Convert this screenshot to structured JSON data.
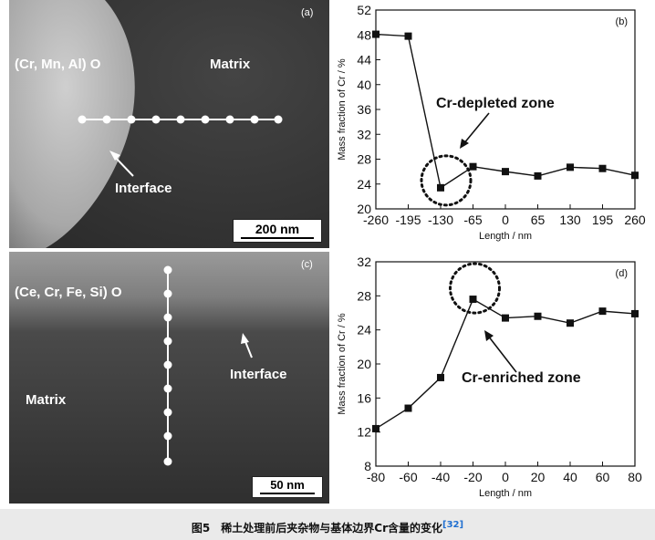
{
  "panel_a": {
    "label": "(a)",
    "phase_label": "(Cr, Mn, Al) O",
    "matrix_label": "Matrix",
    "interface_label": "Interface",
    "scale_bar": "200 nm"
  },
  "panel_c": {
    "label": "(c)",
    "phase_label": "(Ce, Cr, Fe, Si) O",
    "matrix_label": "Matrix",
    "interface_label": "Interface",
    "scale_bar": "50 nm"
  },
  "caption": {
    "text": "图5　稀土处理前后夹杂物与基体边界Cr含量的变化",
    "citation": "[32]"
  },
  "chart_data": [
    {
      "type": "line",
      "panel_label": "(b)",
      "x": [
        -260,
        -195,
        -130,
        -65,
        0,
        65,
        130,
        195,
        260
      ],
      "y": [
        48.1,
        47.8,
        23.4,
        26.8,
        26.0,
        25.3,
        26.7,
        26.5,
        25.4
      ],
      "xlabel": "Length / nm",
      "ylabel": "Mass fraction of Cr / %",
      "xlim": [
        -260,
        260
      ],
      "ylim": [
        20,
        52
      ],
      "xticks": [
        -260,
        -195,
        -130,
        -65,
        0,
        65,
        130,
        195,
        260
      ],
      "yticks": [
        20,
        24,
        28,
        32,
        36,
        40,
        44,
        48,
        52
      ],
      "annotation": "Cr-depleted zone",
      "marker": "square",
      "grid": false
    },
    {
      "type": "line",
      "panel_label": "(d)",
      "x": [
        -80,
        -60,
        -40,
        -20,
        0,
        20,
        40,
        60,
        80
      ],
      "y": [
        12.4,
        14.8,
        18.4,
        27.6,
        25.4,
        25.6,
        24.8,
        26.2,
        25.9
      ],
      "xlabel": "Length / nm",
      "ylabel": "Mass fraction of Cr / %",
      "xlim": [
        -80,
        80
      ],
      "ylim": [
        8,
        32
      ],
      "xticks": [
        -80,
        -60,
        -40,
        -20,
        0,
        20,
        40,
        60,
        80
      ],
      "yticks": [
        8,
        12,
        16,
        20,
        24,
        28,
        32
      ],
      "annotation": "Cr-enriched zone",
      "marker": "square",
      "grid": false
    }
  ]
}
